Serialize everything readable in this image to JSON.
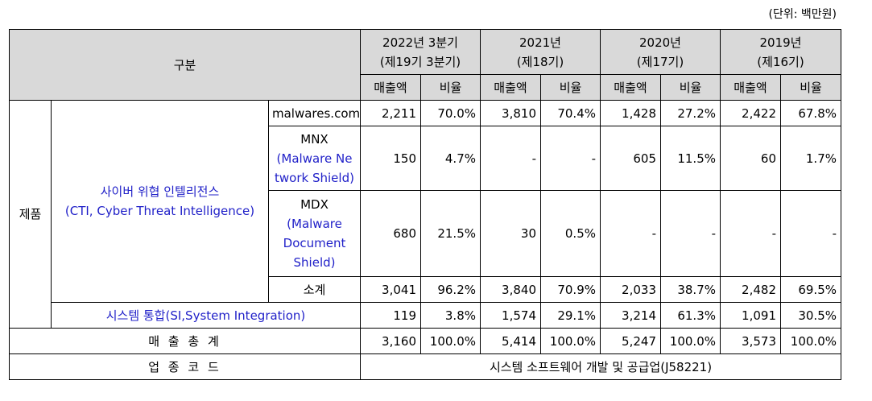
{
  "unit_label": "(단위: 백만원)",
  "header": {
    "category": "구분",
    "periods": [
      {
        "year": "2022년 3분기",
        "term": "(제19기 3분기)"
      },
      {
        "year": "2021년",
        "term": "(제18기)"
      },
      {
        "year": "2020년",
        "term": "(제17기)"
      },
      {
        "year": "2019년",
        "term": "(제16기)"
      }
    ],
    "sales": "매출액",
    "ratio": "비율"
  },
  "group": "제품",
  "cti": {
    "name": "사이버 위협 인텔리전스",
    "name_en": "(CTI, Cyber Threat Intelligence)"
  },
  "rows": {
    "malwares": {
      "name": "malwares.com",
      "cells": [
        "2,211",
        "70.0%",
        "3,810",
        "70.4%",
        "1,428",
        "27.2%",
        "2,422",
        "67.8%"
      ]
    },
    "mnx": {
      "name": "MNX",
      "name_l1": "(Malware Ne",
      "name_l2": "twork Shield)",
      "cells": [
        "150",
        "4.7%",
        "-",
        "-",
        "605",
        "11.5%",
        "60",
        "1.7%"
      ]
    },
    "mdx": {
      "name": "MDX",
      "name_l1": "(Malware",
      "name_l2": "Document",
      "name_l3": "Shield)",
      "cells": [
        "680",
        "21.5%",
        "30",
        "0.5%",
        "-",
        "-",
        "-",
        "-"
      ]
    },
    "subtotal": {
      "name": "소계",
      "cells": [
        "3,041",
        "96.2%",
        "3,840",
        "70.9%",
        "2,033",
        "38.7%",
        "2,482",
        "69.5%"
      ]
    },
    "si": {
      "name": "시스템 통합(SI,System Integration)",
      "cells": [
        "119",
        "3.8%",
        "1,574",
        "29.1%",
        "3,214",
        "61.3%",
        "1,091",
        "30.5%"
      ]
    },
    "total": {
      "name": "매 출 총 계",
      "cells": [
        "3,160",
        "100.0%",
        "5,414",
        "100.0%",
        "5,247",
        "100.0%",
        "3,573",
        "100.0%"
      ]
    }
  },
  "industry": {
    "label": "업 종 코 드",
    "value": "시스템 소프트웨어 개발 및 공급업(J58221)"
  }
}
